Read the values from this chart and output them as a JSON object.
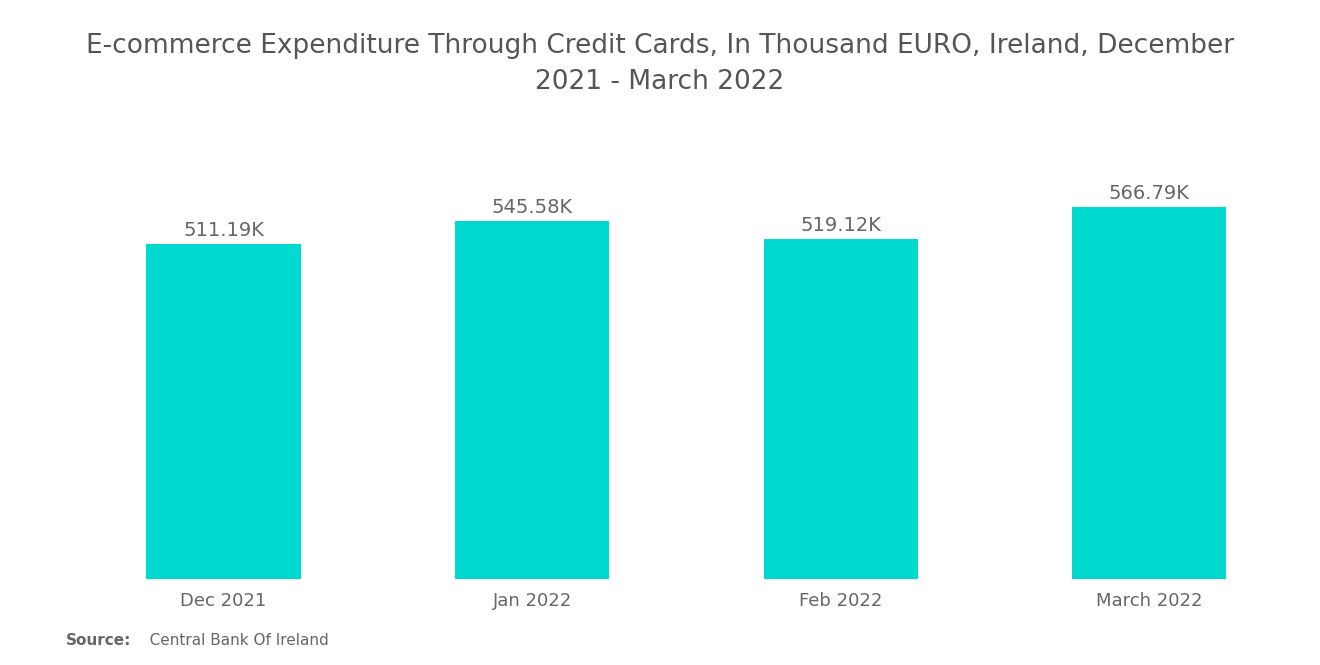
{
  "title": "E-commerce Expenditure Through Credit Cards, In Thousand EURO, Ireland, December\n2021 - March 2022",
  "categories": [
    "Dec 2021",
    "Jan 2022",
    "Feb 2022",
    "March 2022"
  ],
  "values": [
    511190,
    545580,
    519120,
    566790
  ],
  "labels": [
    "511.19K",
    "545.58K",
    "519.12K",
    "566.79K"
  ],
  "bar_color": "#00D9D0",
  "background_color": "#ffffff",
  "title_fontsize": 19,
  "label_fontsize": 14,
  "tick_fontsize": 13,
  "source_bold": "Source:",
  "source_rest": "   Central Bank Of Ireland",
  "ylim_min": 0,
  "ylim_max": 660000,
  "bar_width": 0.5
}
